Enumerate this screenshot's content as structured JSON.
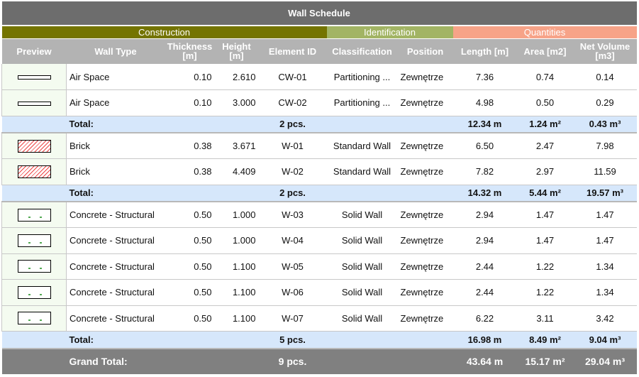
{
  "title": "Wall Schedule",
  "groups": [
    {
      "label": "Construction",
      "color": "#747400"
    },
    {
      "label": "Identification",
      "color": "#a2b464"
    },
    {
      "label": "Quantities",
      "color": "#f7a388"
    }
  ],
  "headers": [
    "Preview",
    "Wall Type",
    "Thickness [m]",
    "Height [m]",
    "Element ID",
    "Classification",
    "Position",
    "Length [m]",
    "Area [m2]",
    "Net Volume [m3]"
  ],
  "sections": [
    {
      "preview": "air-space-swatch",
      "rows": [
        [
          "Air Space",
          "0.10",
          "2.610",
          "CW-01",
          "Partitioning ...",
          "Zewnętrze",
          "7.36",
          "0.74",
          "0.14"
        ],
        [
          "Air Space",
          "0.10",
          "3.000",
          "CW-02",
          "Partitioning ...",
          "Zewnętrze",
          "4.98",
          "0.50",
          "0.29"
        ]
      ],
      "total": {
        "label": "Total:",
        "count": "2 pcs.",
        "length": "12.34 m",
        "area": "1.24 m²",
        "volume": "0.43 m³"
      }
    },
    {
      "preview": "brick-hatch-swatch",
      "rows": [
        [
          "Brick",
          "0.38",
          "3.671",
          "W-01",
          "Standard Wall",
          "Zewnętrze",
          "6.50",
          "2.47",
          "7.98"
        ],
        [
          "Brick",
          "0.38",
          "4.409",
          "W-02",
          "Standard Wall",
          "Zewnętrze",
          "7.82",
          "2.97",
          "11.59"
        ]
      ],
      "total": {
        "label": "Total:",
        "count": "2 pcs.",
        "length": "14.32 m",
        "area": "5.44 m²",
        "volume": "19.57 m³"
      }
    },
    {
      "preview": "concrete-swatch",
      "rows": [
        [
          "Concrete - Structural",
          "0.50",
          "1.000",
          "W-03",
          "Solid Wall",
          "Zewnętrze",
          "2.94",
          "1.47",
          "1.47"
        ],
        [
          "Concrete - Structural",
          "0.50",
          "1.000",
          "W-04",
          "Solid Wall",
          "Zewnętrze",
          "2.94",
          "1.47",
          "1.47"
        ],
        [
          "Concrete - Structural",
          "0.50",
          "1.100",
          "W-05",
          "Solid Wall",
          "Zewnętrze",
          "2.44",
          "1.22",
          "1.34"
        ],
        [
          "Concrete - Structural",
          "0.50",
          "1.100",
          "W-06",
          "Solid Wall",
          "Zewnętrze",
          "2.44",
          "1.22",
          "1.34"
        ],
        [
          "Concrete - Structural",
          "0.50",
          "1.100",
          "W-07",
          "Solid Wall",
          "Zewnętrze",
          "6.22",
          "3.11",
          "3.42"
        ]
      ],
      "total": {
        "label": "Total:",
        "count": "5 pcs.",
        "length": "16.98 m",
        "area": "8.49 m²",
        "volume": "9.04 m³"
      }
    }
  ],
  "grand_total": {
    "label": "Grand Total:",
    "count": "9 pcs.",
    "length": "43.64 m",
    "area": "15.17 m²",
    "volume": "29.04 m³"
  }
}
